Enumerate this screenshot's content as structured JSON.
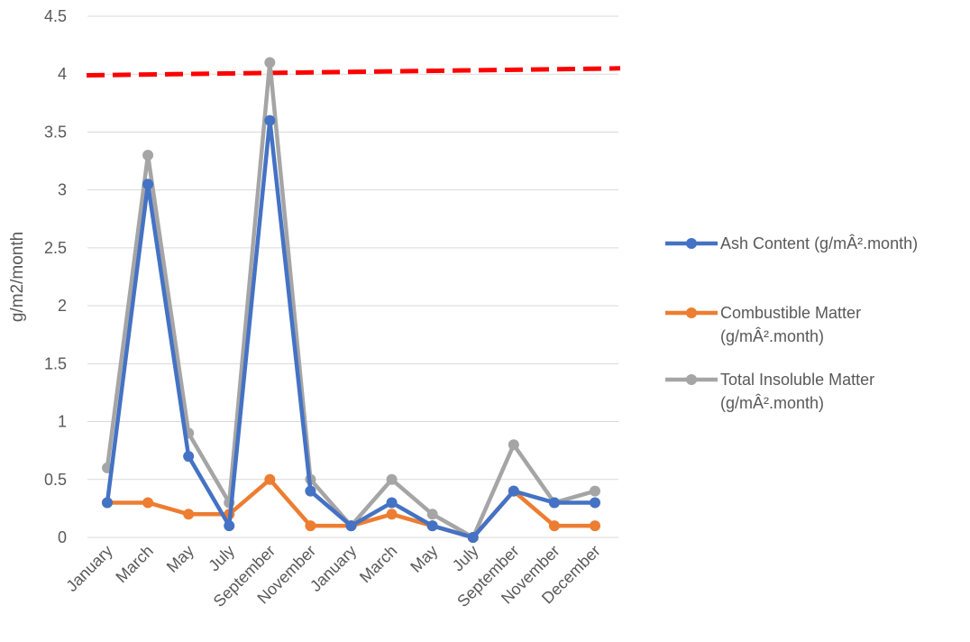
{
  "chart_data": {
    "type": "line",
    "ylabel": "g/m2/month",
    "ylim": [
      0,
      4.5
    ],
    "yticks": [
      "0",
      "0.5",
      "1",
      "1.5",
      "2",
      "2.5",
      "3",
      "3.5",
      "4",
      "4.5"
    ],
    "categories": [
      "January",
      "March",
      "May",
      "July",
      "September",
      "November",
      "January",
      "March",
      "May",
      "July",
      "September",
      "November",
      "December"
    ],
    "grid": true,
    "legend_position": "right",
    "series": [
      {
        "name": "Ash Content (g/mÂ².month)",
        "legend_lines": [
          "Ash Content (g/mÂ².month)"
        ],
        "color": "#4472C4",
        "values": [
          0.3,
          3.05,
          0.7,
          0.1,
          3.6,
          0.4,
          0.1,
          0.3,
          0.1,
          0.0,
          0.4,
          0.3,
          0.3
        ]
      },
      {
        "name": "Combustible Matter (g/mÂ².month)",
        "legend_lines": [
          "Combustible Matter",
          "(g/mÂ².month)"
        ],
        "color": "#ED7D31",
        "values": [
          0.3,
          0.3,
          0.2,
          0.2,
          0.5,
          0.1,
          0.1,
          0.2,
          0.1,
          0.0,
          0.4,
          0.1,
          0.1
        ]
      },
      {
        "name": "Total Insoluble Matter (g/mÂ².month)",
        "legend_lines": [
          "Total Insoluble Matter",
          "(g/mÂ².month)"
        ],
        "color": "#A5A5A5",
        "values": [
          0.6,
          3.3,
          0.9,
          0.3,
          4.1,
          0.5,
          0.1,
          0.5,
          0.2,
          0.0,
          0.8,
          0.3,
          0.4
        ]
      }
    ],
    "reference_line": {
      "style": "dashed",
      "color": "#FF0000",
      "y_start": 3.99,
      "y_end": 4.05
    }
  }
}
